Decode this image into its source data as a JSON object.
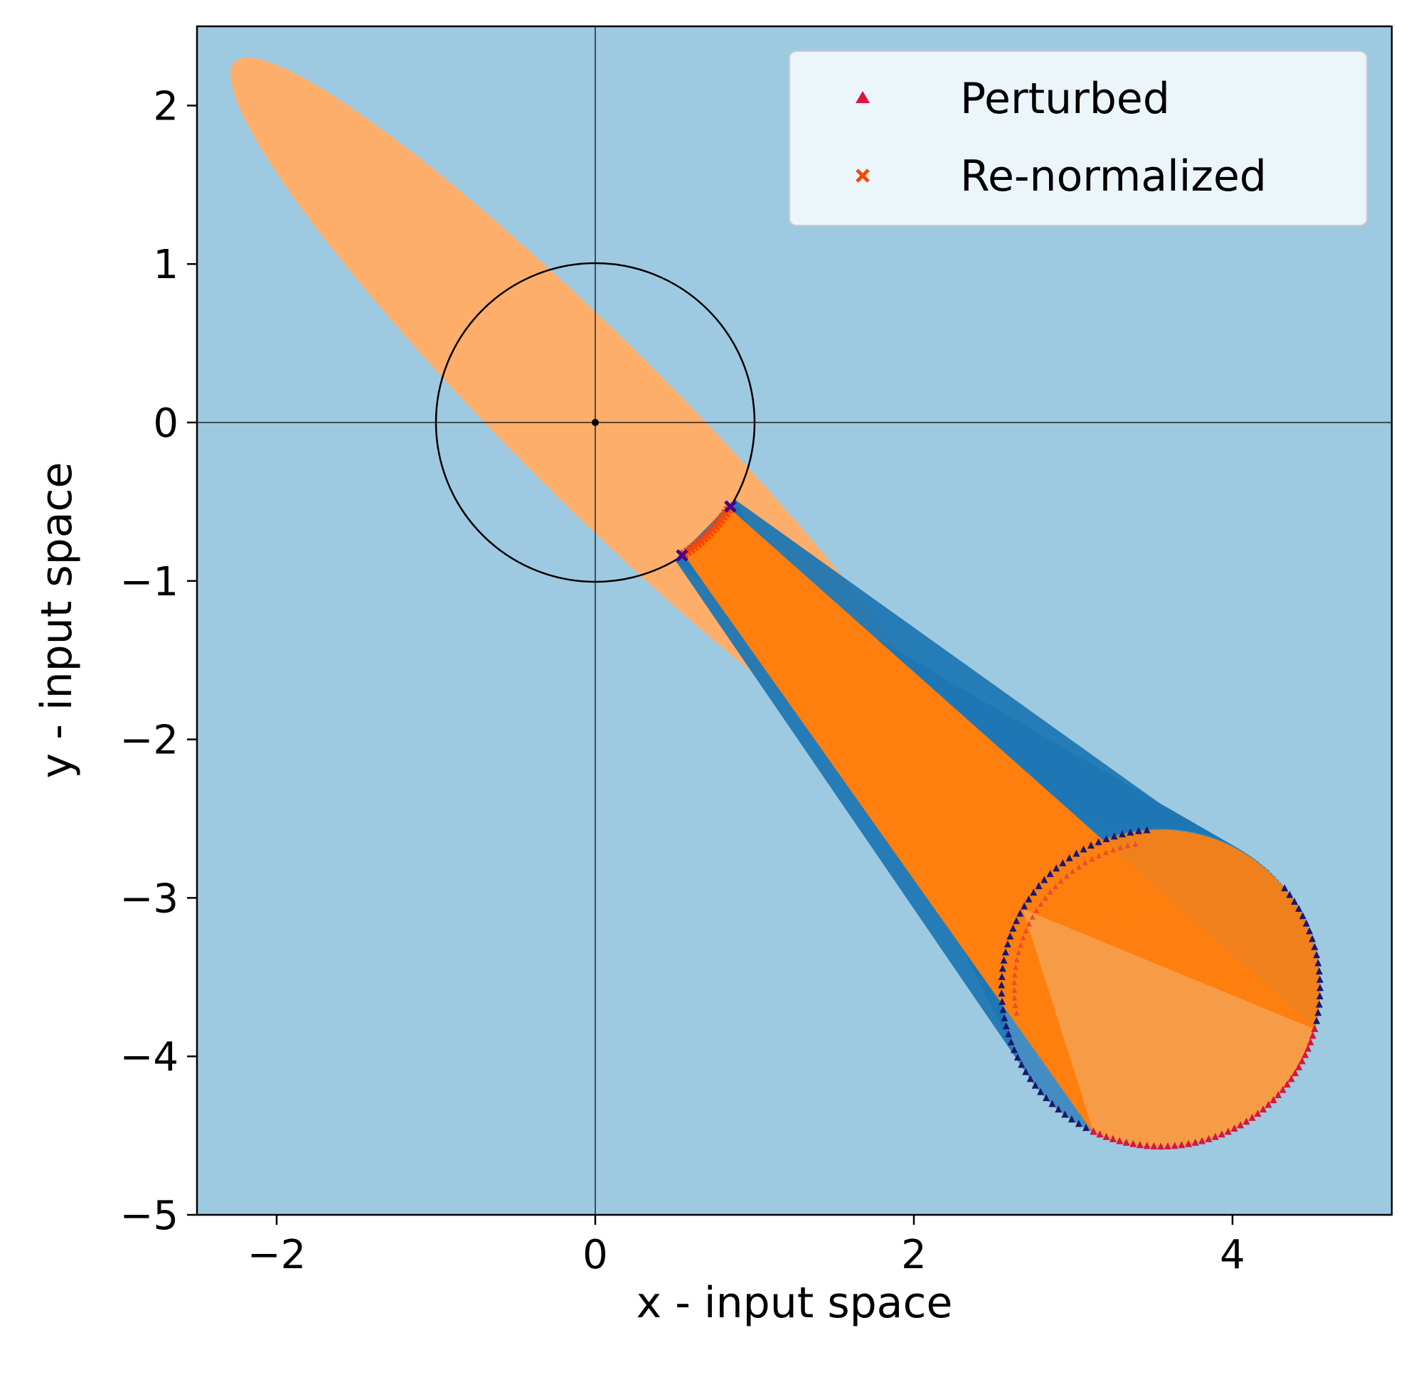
{
  "chart_data": {
    "type": "scatter",
    "title": "",
    "xlabel": "x - input space",
    "ylabel": "y - input space",
    "xlim": [
      -2.5,
      5
    ],
    "ylim": [
      -5,
      2.5
    ],
    "x_ticks": [
      -2,
      0,
      2,
      4
    ],
    "y_ticks": [
      2,
      1,
      0,
      -1,
      -2,
      -3,
      -4,
      -5
    ],
    "x_tick_labels": [
      "−2",
      "0",
      "2",
      "4"
    ],
    "y_tick_labels": [
      "2",
      "1",
      "0",
      "−1",
      "−2",
      "−3",
      "−4",
      "−5"
    ],
    "grid": false,
    "background_color": "#9ecae1",
    "legend": {
      "placement": "upper right",
      "entries": [
        {
          "label": "Perturbed",
          "marker": "triangle",
          "color": "#dc143c"
        },
        {
          "label": "Re-normalized",
          "marker": "x",
          "color": "#ff4500"
        }
      ]
    },
    "shapes": {
      "ellipse": {
        "center": [
          0,
          0
        ],
        "semi_major": 3.2,
        "semi_minor": 0.5,
        "angle_deg": -45,
        "color": "#fdae6b"
      },
      "unit_circle": {
        "center": [
          0,
          0
        ],
        "radius": 1,
        "color": "#000000"
      },
      "perturbed_circle": {
        "center": [
          3.55,
          -3.57
        ],
        "radius": 1.0
      },
      "axis_lines": {
        "x": 0,
        "y": 0
      }
    },
    "series": [
      {
        "name": "Perturbed",
        "color": "#dc143c",
        "arc_deg": [
          -115,
          -15
        ],
        "endpoints": [
          {
            "x": 3.52,
            "y": -4.55
          },
          {
            "x": 4.55,
            "y": -3.6
          }
        ]
      },
      {
        "name": "Re-normalized",
        "color": "#ff4500",
        "arc_deg": [
          -56,
          -33
        ],
        "endpoints": [
          {
            "x": 0.53,
            "y": -0.83
          },
          {
            "x": 0.8,
            "y": -0.55
          }
        ]
      }
    ],
    "colors": {
      "cone_blue": "#1f77b4",
      "cone_orange": "#ff7f0e",
      "outside_markers": "#191970",
      "boundary_marker": "#4b0082"
    }
  }
}
